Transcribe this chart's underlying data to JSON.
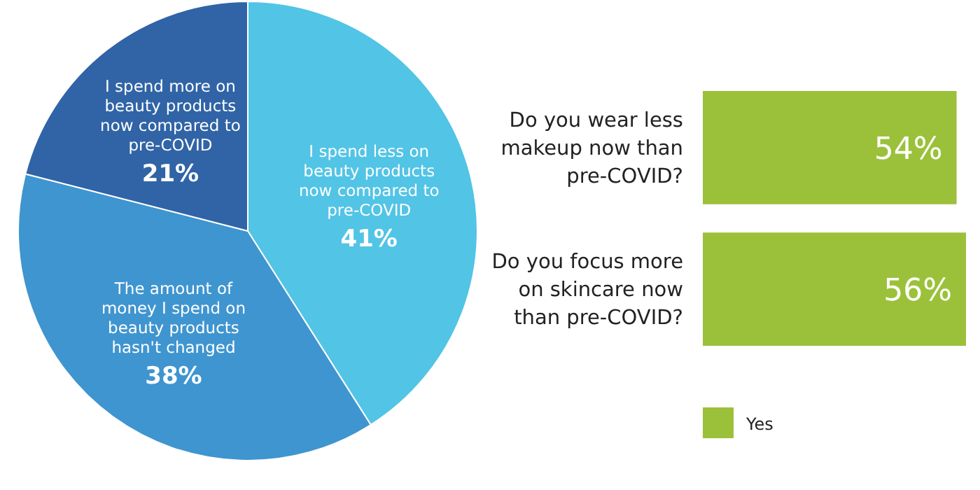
{
  "chart_data": [
    {
      "type": "pie",
      "categories": [
        "I spend less on beauty products now compared to pre-COVID",
        "The amount of money I spend on beauty products hasn't changed",
        "I spend more on beauty products now compared to pre-COVID"
      ],
      "values": [
        41,
        38,
        21
      ],
      "colors": [
        "#52c4e6",
        "#3f95cf",
        "#3064a6"
      ],
      "value_labels": [
        "41%",
        "38%",
        "21%"
      ]
    },
    {
      "type": "bar",
      "orientation": "horizontal",
      "categories": [
        "Do you wear less makeup now than pre-COVID?",
        "Do you focus more on skincare now than pre-COVID?"
      ],
      "legend": "bottom left",
      "series": [
        {
          "name": "Yes",
          "color": "#9bc13a",
          "values": [
            54,
            56
          ],
          "value_labels": [
            "54%",
            "56%"
          ]
        }
      ]
    }
  ]
}
